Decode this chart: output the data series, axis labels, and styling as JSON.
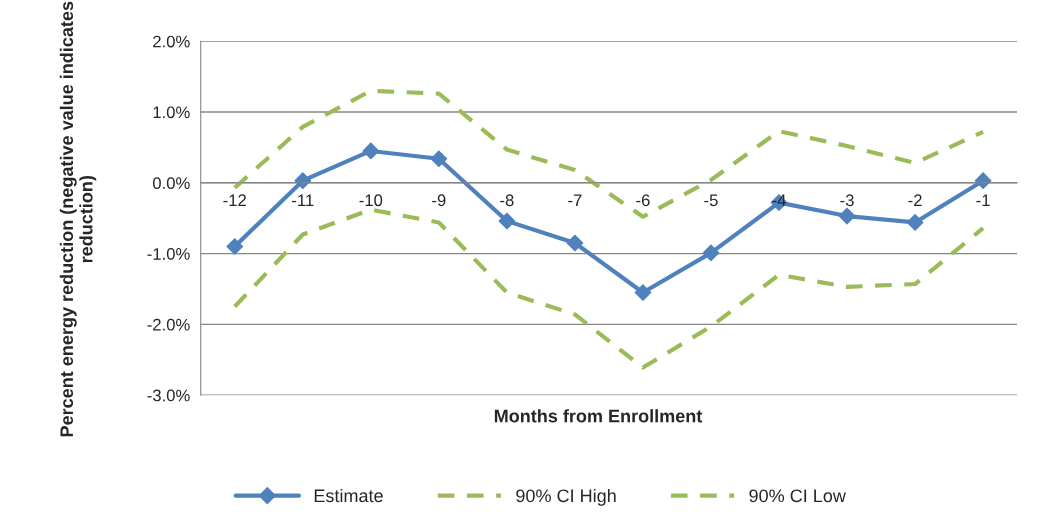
{
  "chart_data": {
    "type": "line",
    "xlabel": "Months from Enrollment",
    "ylabel": "Percent energy reduction (negative value indicates reduction)",
    "categories": [
      "-12",
      "-11",
      "-10",
      "-9",
      "-8",
      "-7",
      "-6",
      "-5",
      "-4",
      "-3",
      "-2",
      "-1"
    ],
    "series": [
      {
        "name": "Estimate",
        "color": "#4f81bd",
        "marker": "diamond",
        "line_style": "solid",
        "values": [
          -0.9,
          0.03,
          0.45,
          0.34,
          -0.54,
          -0.85,
          -1.55,
          -0.99,
          -0.28,
          -0.47,
          -0.56,
          0.03
        ]
      },
      {
        "name": "90% CI High",
        "color": "#9bbb59",
        "marker": "none",
        "line_style": "dashed",
        "values": [
          -0.07,
          0.79,
          1.3,
          1.26,
          0.47,
          0.18,
          -0.48,
          0.04,
          0.73,
          0.52,
          0.28,
          0.72
        ]
      },
      {
        "name": "90% CI Low",
        "color": "#9bbb59",
        "marker": "none",
        "line_style": "dashed",
        "values": [
          -1.75,
          -0.73,
          -0.38,
          -0.56,
          -1.55,
          -1.86,
          -2.61,
          -2.03,
          -1.3,
          -1.47,
          -1.43,
          -0.64
        ]
      }
    ],
    "ylim": [
      -3,
      2
    ],
    "yticks": [
      {
        "value": -3,
        "label": "-3.0%"
      },
      {
        "value": -2,
        "label": "-2.0%"
      },
      {
        "value": -1,
        "label": "-1.0%"
      },
      {
        "value": 0,
        "label": "0.0%"
      },
      {
        "value": 1,
        "label": "1.0%"
      },
      {
        "value": 2,
        "label": "2.0%"
      }
    ],
    "grid": "y",
    "legend": "bottom"
  }
}
